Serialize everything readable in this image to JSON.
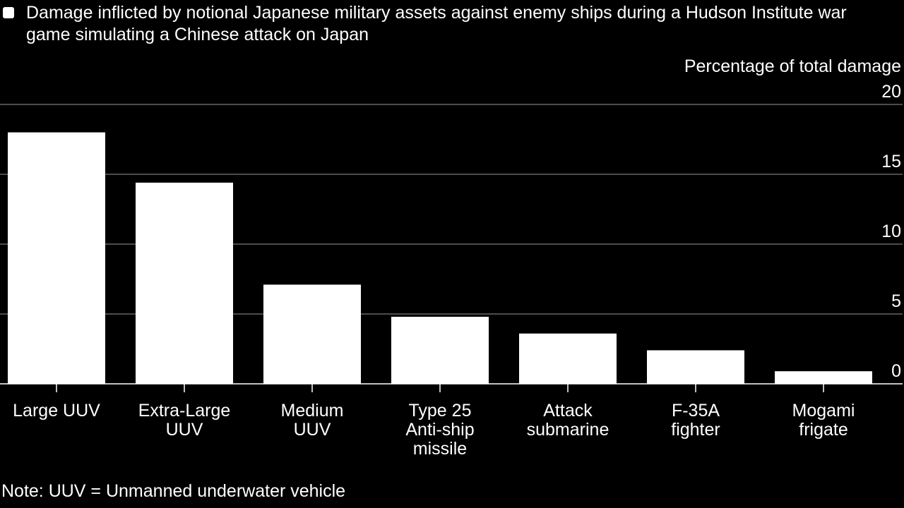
{
  "chart_data": {
    "type": "bar",
    "title": "Damage inflicted by notional Japanese military assets against enemy ships during a Hudson Institute war game simulating a Chinese attack on Japan",
    "ylabel": "Percentage of total damage",
    "xlabel": "",
    "categories": [
      [
        "Large UUV"
      ],
      [
        "Extra-Large",
        "UUV"
      ],
      [
        "Medium",
        "UUV"
      ],
      [
        "Type 25",
        "Anti-ship",
        "missile"
      ],
      [
        "Attack",
        "submarine"
      ],
      [
        "F-35A",
        "fighter"
      ],
      [
        "Mogami",
        "frigate"
      ]
    ],
    "values": [
      18.0,
      14.4,
      7.1,
      4.8,
      3.6,
      2.4,
      0.9
    ],
    "ylim": [
      0,
      20
    ],
    "yticks": [
      0,
      5,
      10,
      15,
      20
    ],
    "grid": true,
    "legend": "top-left",
    "colors": {
      "background": "#000000",
      "bar": "#ffffff",
      "grid": "#666666",
      "text": "#ffffff"
    }
  },
  "note": "Note: UUV = Unmanned underwater vehicle"
}
